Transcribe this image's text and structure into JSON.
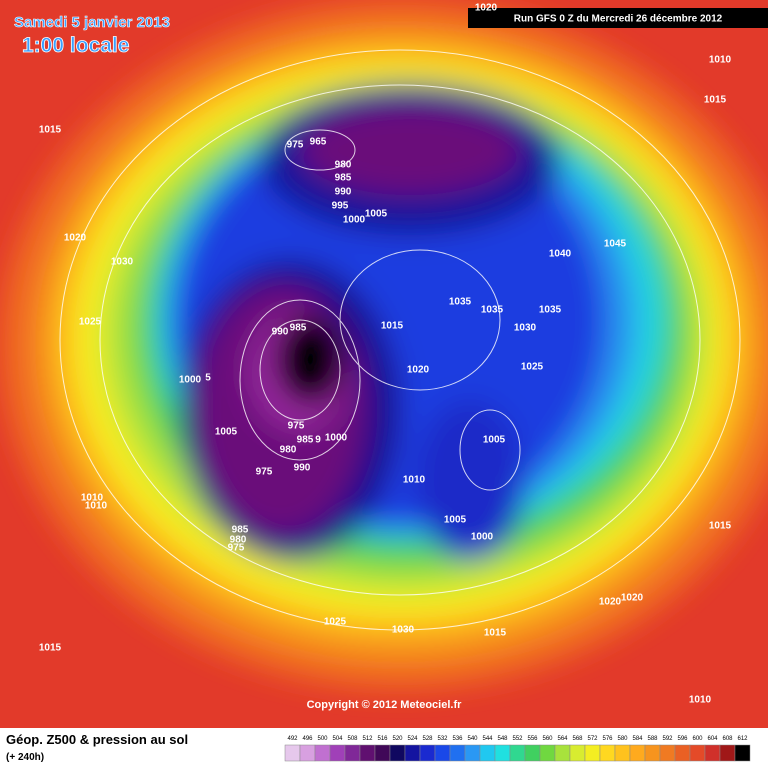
{
  "header": {
    "title": "Samedi 5 janvier 2013",
    "time": "1:00 locale",
    "run": "Run GFS 0 Z du Mercredi 26 décembre 2012"
  },
  "isobar_labels": [
    "1020",
    "1010",
    "1015",
    "1015",
    "975",
    "965",
    "980",
    "985",
    "990",
    "995",
    "1000",
    "1005",
    "1020",
    "1030",
    "1040",
    "1045",
    "1025",
    "990",
    "985",
    "1035",
    "1035",
    "1015",
    "1030",
    "1035",
    "1000",
    "5",
    "1020",
    "1025",
    "1005",
    "975",
    "985",
    "9",
    "1000",
    "980",
    "990",
    "975",
    "1005",
    "1010",
    "1010",
    "1010",
    "1005",
    "1000",
    "985",
    "980",
    "975",
    "1015",
    "1020",
    "1020",
    "1025",
    "1030",
    "1015",
    "1015",
    "1010"
  ],
  "copyright": "Copyright © 2012 Meteociel.fr",
  "footer": {
    "title": "Géop. Z500 & pression au sol",
    "lead": "(+ 240h)"
  },
  "legend": {
    "labels": [
      492,
      496,
      500,
      504,
      508,
      512,
      516,
      520,
      524,
      528,
      532,
      536,
      540,
      544,
      548,
      552,
      556,
      560,
      564,
      568,
      572,
      576,
      580,
      584,
      588,
      592,
      596,
      600,
      604,
      608,
      612
    ]
  }
}
